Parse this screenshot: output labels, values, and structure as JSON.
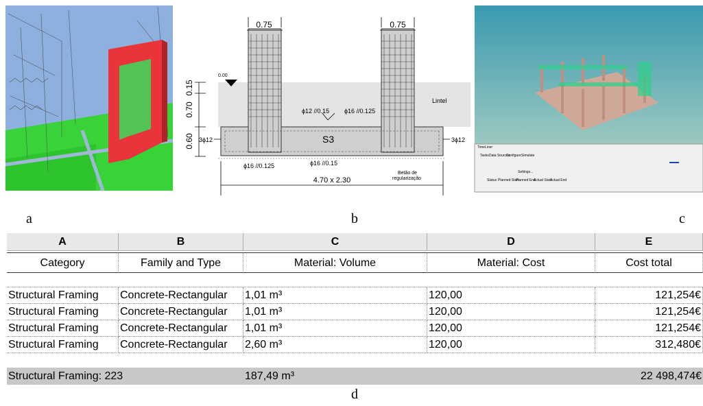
{
  "panels": [
    {
      "label": "a"
    },
    {
      "label": "b",
      "drawing": {
        "width_left": "0.75",
        "width_right": "0.75",
        "level": "0.00",
        "h1": "0.15",
        "h2": "0.70",
        "h3": "0.60",
        "lintel": "Lintel",
        "footing": "S3",
        "bar_top1": "ϕ12 //0.15",
        "bar_top2": "ϕ16 //0.125",
        "side_left": "3ϕ12",
        "side_right": "3ϕ12",
        "bar_bottom1": "ϕ16 //0.125",
        "bar_bottom2": "ϕ16 //0.15",
        "blinding": [
          "Betão de",
          "regularização"
        ],
        "size": "4.70 x 2.30"
      }
    },
    {
      "label": "c",
      "tabs": [
        "Tasks",
        "Data Sources",
        "Configure",
        "Simulate"
      ],
      "settings": "Settings...",
      "columns": [
        "Status",
        "Planned Start",
        "Planned End",
        "Actual Start",
        "Actual End"
      ],
      "panel_title": "TimeLiner"
    }
  ],
  "table": {
    "label": "d",
    "letters": [
      "A",
      "B",
      "C",
      "D",
      "E"
    ],
    "headers": [
      "Category",
      "Family and Type",
      "Material: Volume",
      "Material: Cost",
      "Cost total"
    ],
    "rows": [
      [
        "Structural Framing",
        "Concrete-Rectangular",
        "1,01 m³",
        "120,00",
        "121,254€"
      ],
      [
        "Structural Framing",
        "Concrete-Rectangular",
        "1,01 m³",
        "120,00",
        "121,254€"
      ],
      [
        "Structural Framing",
        "Concrete-Rectangular",
        "1,01 m³",
        "120,00",
        "121,254€"
      ],
      [
        "Structural Framing",
        "Concrete-Rectangular",
        "2,60 m³",
        "120,00",
        "312,480€"
      ]
    ],
    "footer": {
      "count": "Structural Framing: 223",
      "volume": "187,49 m³",
      "total": "22 498,474€"
    }
  }
}
